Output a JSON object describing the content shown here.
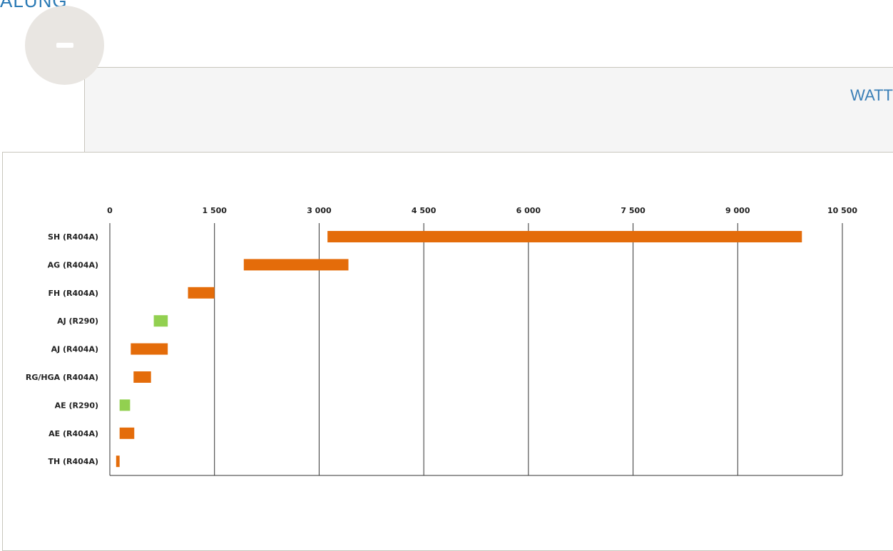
{
  "header": {
    "top_fragment": "ALUNG",
    "panel_title": "WATT"
  },
  "colors": {
    "r404a": "#e46c0a",
    "r290": "#92d050",
    "grid": "#333333"
  },
  "chart_data": {
    "type": "bar",
    "orientation": "horizontal",
    "title": "",
    "xlabel": "",
    "ylabel": "",
    "xlim": [
      0,
      10500
    ],
    "x_ticks": [
      0,
      1500,
      3000,
      4500,
      6000,
      7500,
      9000,
      10500
    ],
    "x_tick_labels": [
      "0",
      "1 500",
      "3 000",
      "4 500",
      "6 000",
      "7 500",
      "9 000",
      "10 500"
    ],
    "grid": true,
    "categories": [
      "SH (R404A)",
      "AG (R404A)",
      "FH (R404A)",
      "AJ (R290)",
      "AJ (R404A)",
      "RG/HGA (R404A)",
      "AE (R290)",
      "AE (R404A)",
      "TH (R404A)"
    ],
    "ranges": [
      {
        "label": "SH (R404A)",
        "start": 3120,
        "end": 9920,
        "refrigerant": "R404A"
      },
      {
        "label": "AG (R404A)",
        "start": 1920,
        "end": 3420,
        "refrigerant": "R404A"
      },
      {
        "label": "FH (R404A)",
        "start": 1120,
        "end": 1500,
        "refrigerant": "R404A"
      },
      {
        "label": "AJ (R290)",
        "start": 630,
        "end": 830,
        "refrigerant": "R290"
      },
      {
        "label": "AJ (R404A)",
        "start": 300,
        "end": 830,
        "refrigerant": "R404A"
      },
      {
        "label": "RG/HGA (R404A)",
        "start": 340,
        "end": 590,
        "refrigerant": "R404A"
      },
      {
        "label": "AE (R290)",
        "start": 140,
        "end": 290,
        "refrigerant": "R290"
      },
      {
        "label": "AE (R404A)",
        "start": 140,
        "end": 350,
        "refrigerant": "R404A"
      },
      {
        "label": "TH (R404A)",
        "start": 90,
        "end": 140,
        "refrigerant": "R404A"
      }
    ]
  }
}
